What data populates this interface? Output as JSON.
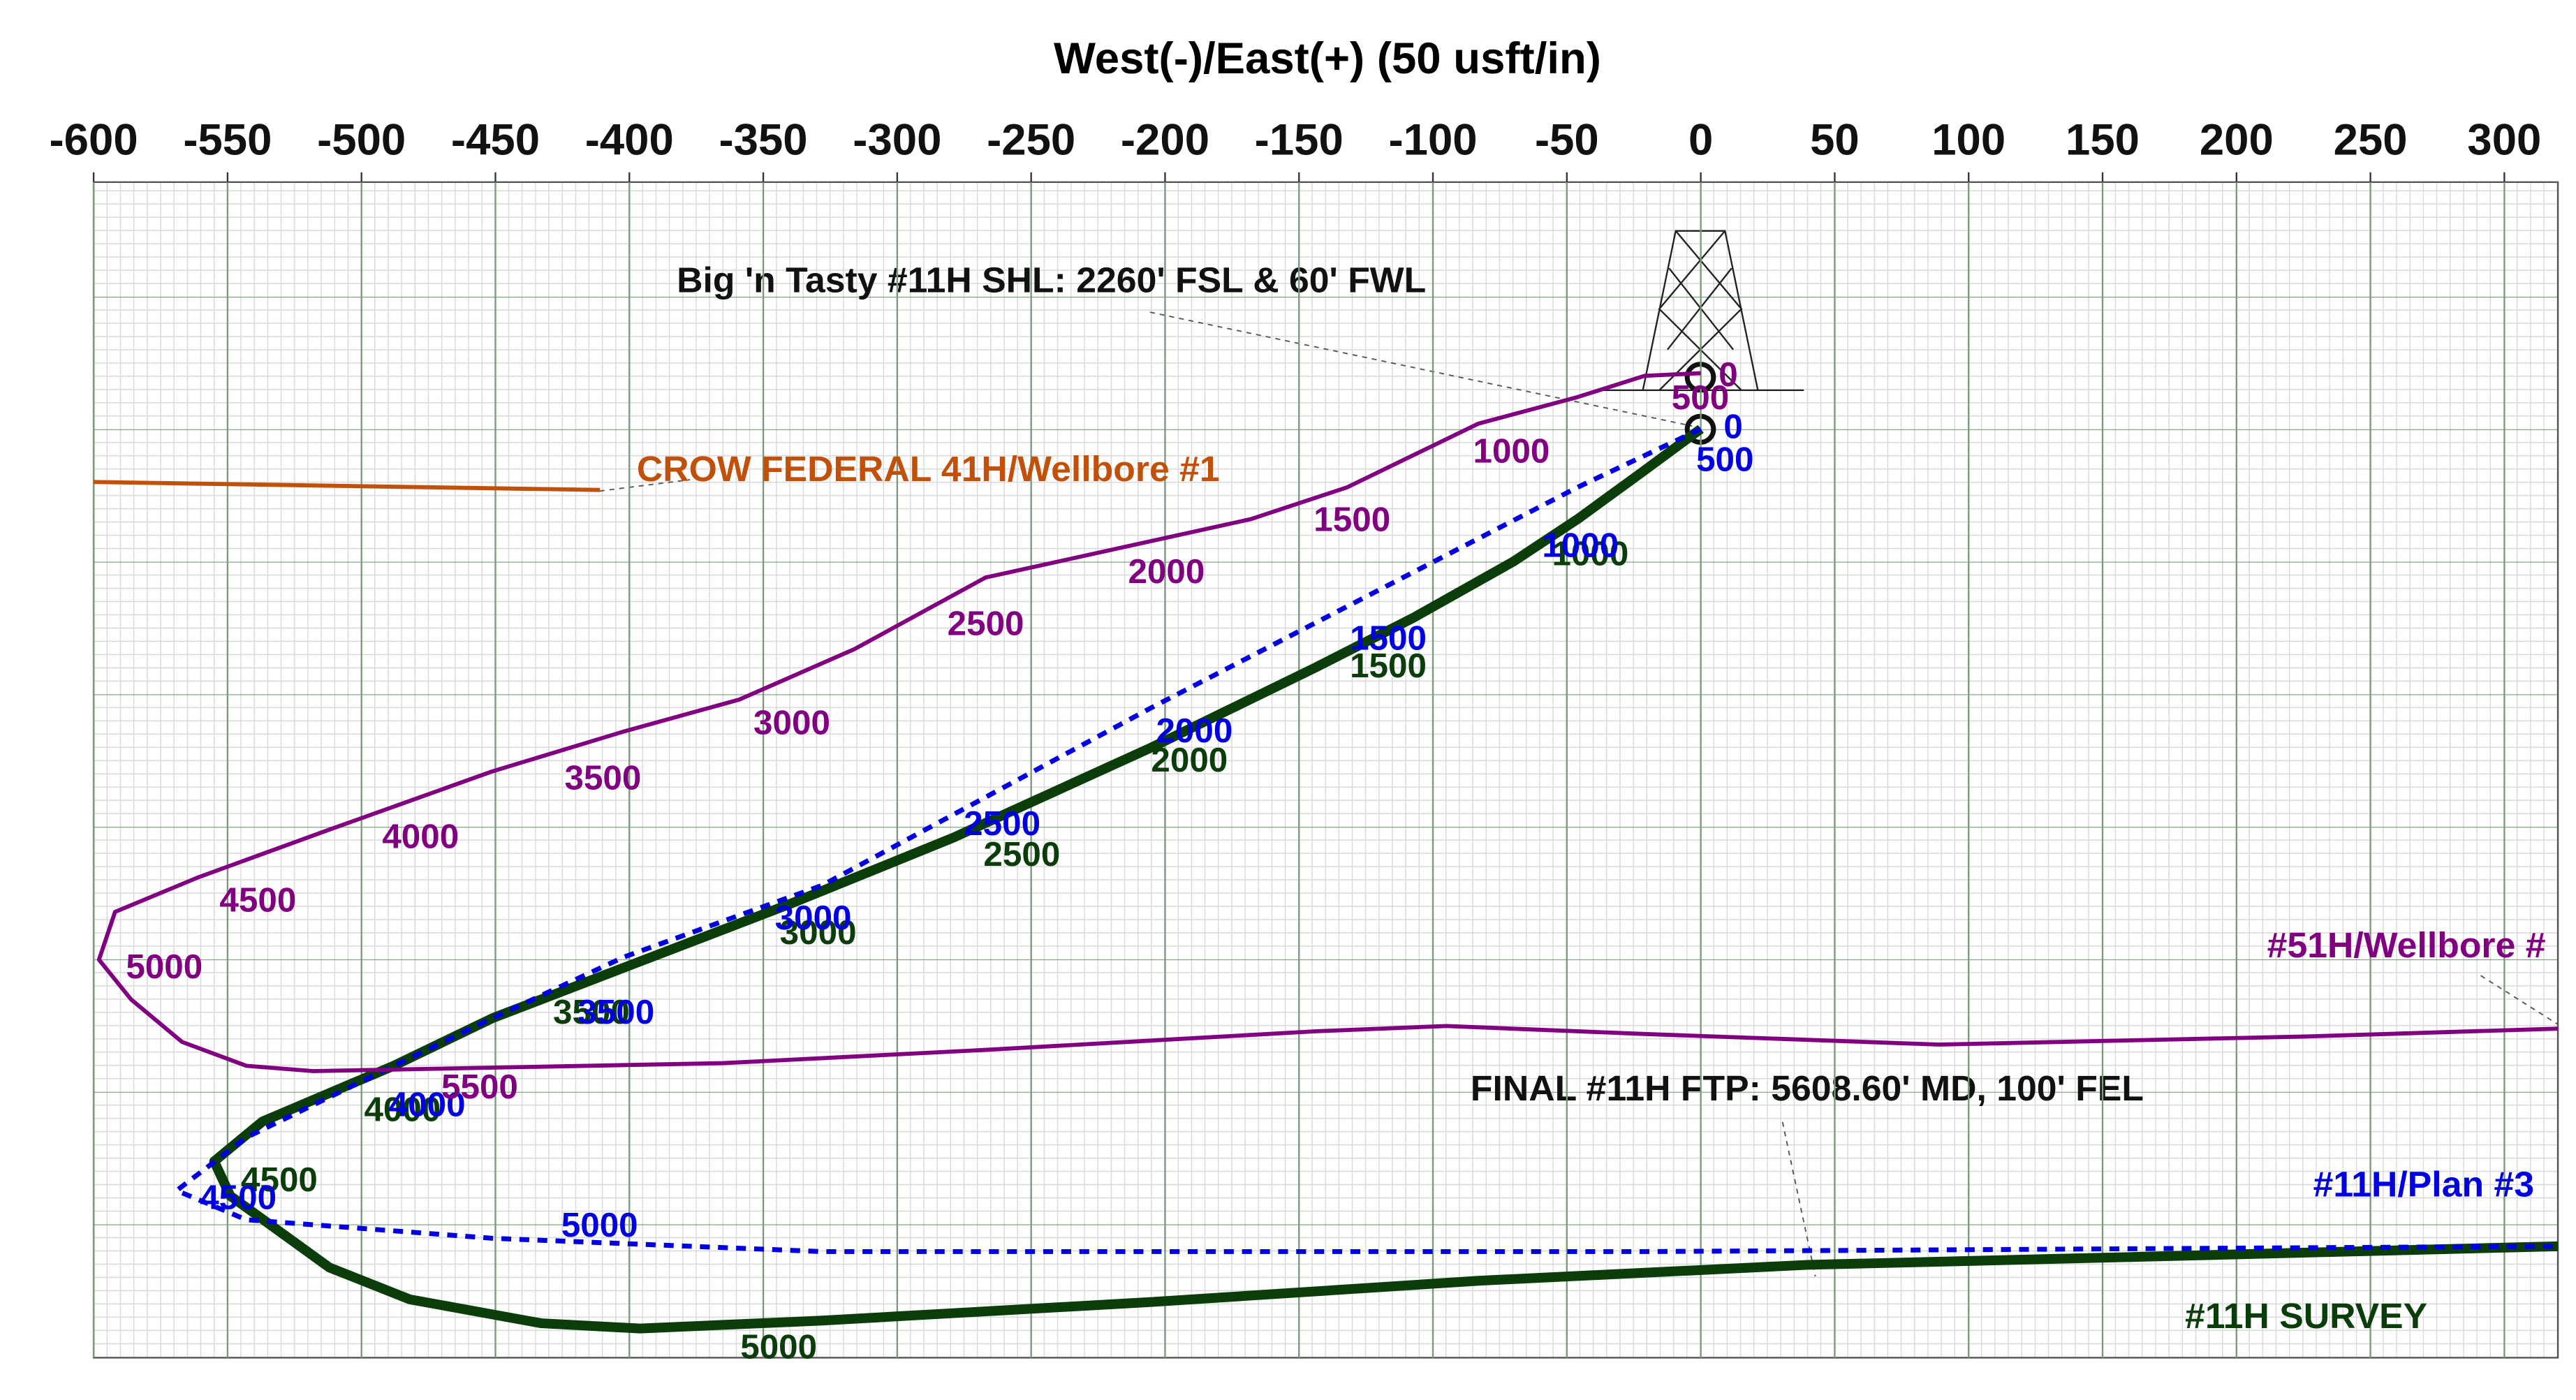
{
  "chart_data": {
    "type": "line",
    "x_label": "West(-)/East(+) (50 usft/in)",
    "xlim": [
      -600,
      320
    ],
    "ylim": [
      -350,
      93
    ],
    "xticks": [
      -600,
      -550,
      -500,
      -450,
      -400,
      -350,
      -300,
      -250,
      -200,
      -150,
      -100,
      -50,
      0,
      50,
      100,
      150,
      200,
      250,
      300
    ],
    "grid": true,
    "series": [
      {
        "name": "#11H SURVEY",
        "color": "#0b3d0b",
        "width": 6,
        "dash": false,
        "x": [
          0,
          -21.5,
          -46,
          -70,
          -107,
          -144,
          -205,
          -279,
          -340,
          -402,
          -451,
          -488,
          -537,
          -555,
          -549,
          -512,
          -482,
          -433,
          -396,
          -328,
          -205,
          -83,
          40,
          163,
          320
        ],
        "values": [
          0,
          -16,
          -34,
          -50,
          -71,
          -90,
          -120,
          -154,
          -179,
          -203,
          -222,
          -240,
          -261,
          -276,
          -289,
          -316,
          -328,
          -337,
          -339,
          -336,
          -329,
          -321,
          -315,
          -312,
          -308
        ],
        "depth_labels": [
          1000,
          1500,
          2000,
          2500,
          3000,
          3500,
          4000,
          4500,
          5000
        ]
      },
      {
        "name": "#11H/Plan #3",
        "color": "#0000e0",
        "width": 3,
        "dash": true,
        "x": [
          0,
          -46,
          -205,
          -328,
          -402,
          -451,
          -494,
          -543,
          -569,
          -543,
          -451,
          -328,
          -21,
          320
        ],
        "values": [
          0,
          -22,
          -105,
          -172,
          -199,
          -222,
          -243,
          -267,
          -287,
          -298,
          -305,
          -310,
          -310,
          -308
        ],
        "depth_labels": [
          0,
          500,
          1000,
          1500,
          2000,
          2500,
          3000,
          3500,
          4000,
          4500,
          5000
        ]
      },
      {
        "name": "#51H/Wellbore #",
        "color": "#800080",
        "width": 2.5,
        "dash": false,
        "x": [
          0,
          -21,
          -46,
          -83,
          -132,
          -168,
          -267,
          -316,
          -359,
          -402,
          -451,
          -512,
          -561,
          -592,
          -595,
          -598,
          -586,
          -567,
          -543,
          -518,
          -365,
          -267,
          -144,
          -95,
          -21,
          89,
          224,
          320
        ],
        "values": [
          21,
          20,
          12,
          2,
          -22,
          -34,
          -56,
          -83,
          -102,
          -114,
          -129,
          -151,
          -169,
          -182,
          -191,
          -200,
          -215,
          -231,
          -240,
          -242,
          -239,
          -234,
          -227,
          -225,
          -228,
          -232,
          -229,
          -226
        ],
        "depth_labels": [
          0,
          500,
          1000,
          1500,
          2000,
          2500,
          3000,
          3500,
          4000,
          4500,
          5000,
          5500
        ]
      },
      {
        "name": "CROW FEDERAL 41H/Wellbore #1",
        "color": "#c0500a",
        "width": 2.5,
        "dash": false,
        "x": [
          -600,
          -411
        ],
        "values": [
          -20,
          -23
        ]
      }
    ],
    "annotations": [
      "Big 'n Tasty #11H SHL: 2260' FSL & 60' FWL",
      "FINAL #11H FTP: 5608.60' MD, 100' FEL"
    ]
  }
}
